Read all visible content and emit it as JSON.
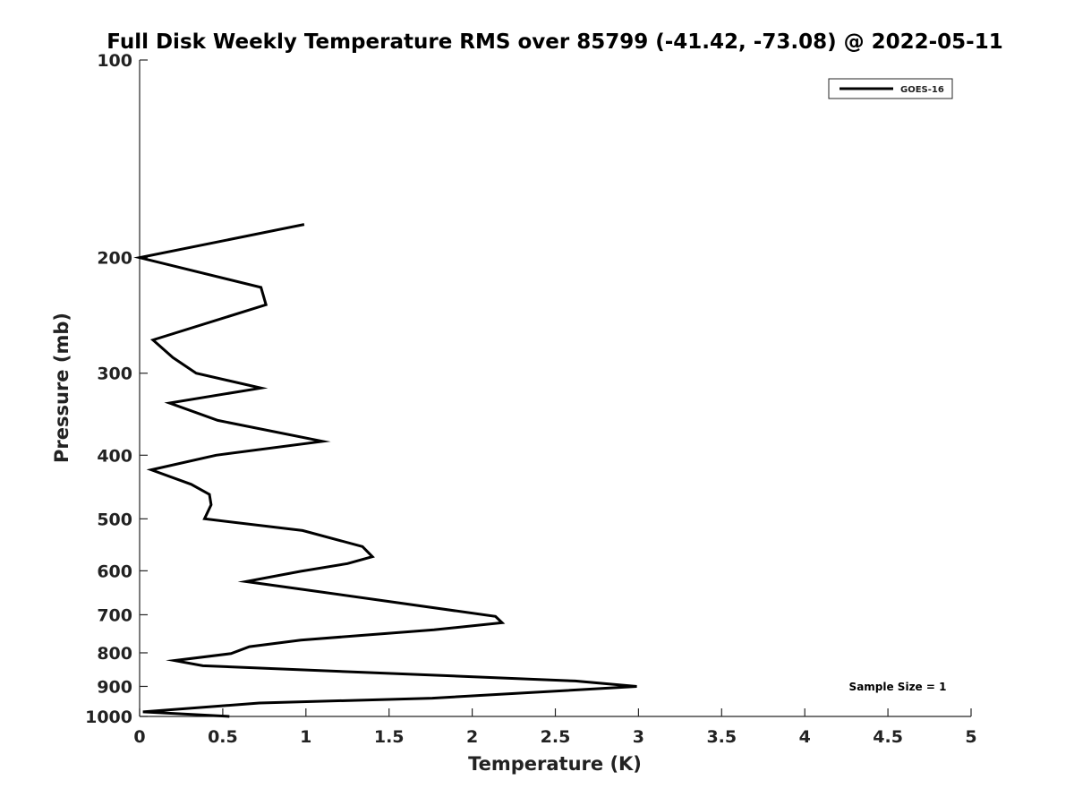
{
  "chart_data": {
    "type": "line",
    "title": "Full Disk Weekly Temperature RMS over 85799 (-41.42, -73.08) @ 2022-05-11",
    "xlabel": "Temperature (K)",
    "ylabel": "Pressure (mb)",
    "xlim": [
      0,
      5
    ],
    "ylim": [
      100,
      1000
    ],
    "y_scale": "log",
    "y_reversed": true,
    "grid": false,
    "legend_position": "top-right",
    "x_ticks": [
      "0",
      "0.5",
      "1",
      "1.5",
      "2",
      "2.5",
      "3",
      "3.5",
      "4",
      "4.5",
      "5"
    ],
    "y_ticks": [
      "100",
      "200",
      "300",
      "400",
      "500",
      "600",
      "700",
      "800",
      "900",
      "1000"
    ],
    "series": [
      {
        "name": "GOES-16",
        "color": "#000000",
        "points": [
          {
            "t": 0.99,
            "p": 178
          },
          {
            "t": 0.0,
            "p": 200
          },
          {
            "t": 0.73,
            "p": 222
          },
          {
            "t": 0.76,
            "p": 236
          },
          {
            "t": 0.08,
            "p": 267
          },
          {
            "t": 0.2,
            "p": 284
          },
          {
            "t": 0.34,
            "p": 300
          },
          {
            "t": 0.73,
            "p": 316
          },
          {
            "t": 0.18,
            "p": 333
          },
          {
            "t": 0.47,
            "p": 354
          },
          {
            "t": 1.1,
            "p": 381
          },
          {
            "t": 0.46,
            "p": 400
          },
          {
            "t": 0.07,
            "p": 421
          },
          {
            "t": 0.31,
            "p": 443
          },
          {
            "t": 0.42,
            "p": 459
          },
          {
            "t": 0.43,
            "p": 476
          },
          {
            "t": 0.39,
            "p": 500
          },
          {
            "t": 0.98,
            "p": 521
          },
          {
            "t": 1.34,
            "p": 551
          },
          {
            "t": 1.4,
            "p": 571
          },
          {
            "t": 1.25,
            "p": 585
          },
          {
            "t": 0.97,
            "p": 601
          },
          {
            "t": 0.64,
            "p": 623
          },
          {
            "t": 0.99,
            "p": 641
          },
          {
            "t": 2.14,
            "p": 704
          },
          {
            "t": 2.18,
            "p": 720
          },
          {
            "t": 1.77,
            "p": 738
          },
          {
            "t": 0.97,
            "p": 765
          },
          {
            "t": 0.66,
            "p": 783
          },
          {
            "t": 0.55,
            "p": 802
          },
          {
            "t": 0.21,
            "p": 822
          },
          {
            "t": 0.38,
            "p": 837
          },
          {
            "t": 2.62,
            "p": 883
          },
          {
            "t": 2.99,
            "p": 900
          },
          {
            "t": 1.76,
            "p": 938
          },
          {
            "t": 0.72,
            "p": 954
          },
          {
            "t": 0.02,
            "p": 984
          },
          {
            "t": 0.54,
            "p": 1000
          }
        ]
      }
    ],
    "annotation": "Sample Size = 1"
  }
}
